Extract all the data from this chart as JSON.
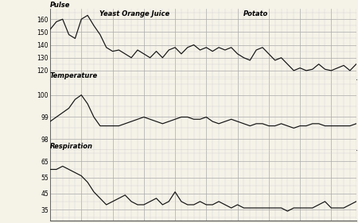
{
  "title_yeast": "Yeast Orange Juice",
  "title_potato": "Potato",
  "label_pulse": "Pulse",
  "label_temperature": "Temperature",
  "label_respiration": "Respiration",
  "bg_color": "#f5f2e8",
  "line_color": "#111111",
  "grid_major_color": "#aaaaaa",
  "grid_minor_color": "#cccccc",
  "pulse": [
    152,
    158,
    160,
    148,
    145,
    160,
    163,
    155,
    148,
    138,
    135,
    136,
    133,
    130,
    136,
    133,
    130,
    135,
    130,
    136,
    138,
    133,
    138,
    140,
    136,
    138,
    135,
    138,
    136,
    138,
    133,
    130,
    128,
    136,
    138,
    133,
    128,
    130,
    125,
    120,
    122,
    120,
    121,
    125,
    121,
    120,
    122,
    124,
    120,
    125
  ],
  "temperature": [
    98.8,
    99.0,
    99.2,
    99.4,
    99.8,
    100.0,
    99.6,
    99.0,
    98.6,
    98.6,
    98.6,
    98.6,
    98.7,
    98.8,
    98.9,
    99.0,
    98.9,
    98.8,
    98.7,
    98.8,
    98.9,
    99.0,
    99.0,
    98.9,
    98.9,
    99.0,
    98.8,
    98.7,
    98.8,
    98.9,
    98.8,
    98.7,
    98.6,
    98.7,
    98.7,
    98.6,
    98.6,
    98.7,
    98.6,
    98.5,
    98.6,
    98.6,
    98.7,
    98.7,
    98.6,
    98.6,
    98.6,
    98.6,
    98.6,
    98.7
  ],
  "respiration": [
    60,
    60,
    62,
    60,
    58,
    56,
    52,
    46,
    42,
    38,
    40,
    42,
    44,
    40,
    38,
    38,
    40,
    42,
    38,
    40,
    46,
    40,
    38,
    38,
    40,
    38,
    38,
    40,
    38,
    36,
    38,
    36,
    36,
    36,
    36,
    36,
    36,
    36,
    34,
    36,
    36,
    36,
    36,
    38,
    40,
    36,
    36,
    36,
    38,
    40
  ],
  "pulse_ylim": [
    113,
    168
  ],
  "pulse_yticks": [
    120,
    130,
    140,
    150,
    160
  ],
  "pulse_yminor": 5,
  "temp_ylim": [
    97.5,
    100.7
  ],
  "temp_yticks": [
    98,
    99,
    100
  ],
  "temp_yminor": 0.5,
  "resp_ylim": [
    28,
    72
  ],
  "resp_yticks": [
    35,
    45,
    55,
    65
  ],
  "resp_yminor": 5,
  "n_xminor": 1
}
